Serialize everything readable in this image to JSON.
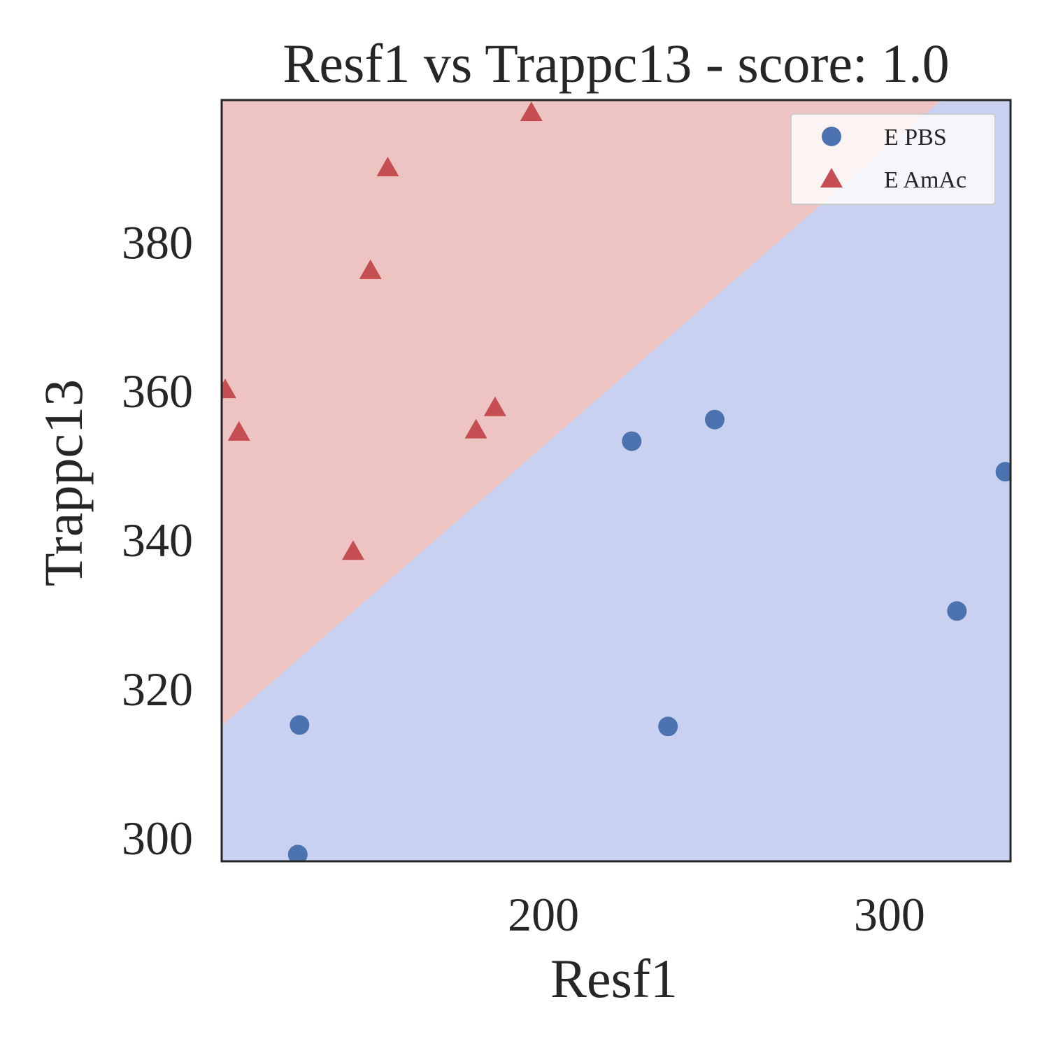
{
  "chart_data": {
    "type": "scatter",
    "title": "Resf1 vs Trappc13 - score: 1.0",
    "xlabel": "Resf1",
    "ylabel": "Trappc13",
    "xlim": [
      107,
      335
    ],
    "ylim": [
      296.8,
      399
    ],
    "xticks": [
      200,
      300
    ],
    "yticks": [
      300,
      320,
      340,
      360,
      380
    ],
    "grid": false,
    "legend_position": "top-right",
    "decision_boundary": {
      "description": "linear classifier regions",
      "points": [
        [
          107,
          315
        ],
        [
          315,
          399
        ]
      ],
      "upper_region": "E AmAc",
      "lower_region": "E PBS"
    },
    "colors": {
      "E PBS": "#4c72b0",
      "E AmAc": "#c44e52",
      "region_upper": "#eec4c3",
      "region_lower": "#c9d1f1"
    },
    "series": [
      {
        "name": "E PBS",
        "marker": "circle",
        "points": [
          [
            129.5,
            315.1
          ],
          [
            129.0,
            297.7
          ],
          [
            225.5,
            353.2
          ],
          [
            236.0,
            314.9
          ],
          [
            249.5,
            356.1
          ],
          [
            319.5,
            330.4
          ],
          [
            333.5,
            349.1
          ]
        ]
      },
      {
        "name": "E AmAc",
        "marker": "triangle",
        "points": [
          [
            108.0,
            360.0
          ],
          [
            112.0,
            354.3
          ],
          [
            145.0,
            338.3
          ],
          [
            150.0,
            376.0
          ],
          [
            155.0,
            389.8
          ],
          [
            180.5,
            354.6
          ],
          [
            186.0,
            357.6
          ],
          [
            196.5,
            397.2
          ]
        ]
      }
    ]
  }
}
